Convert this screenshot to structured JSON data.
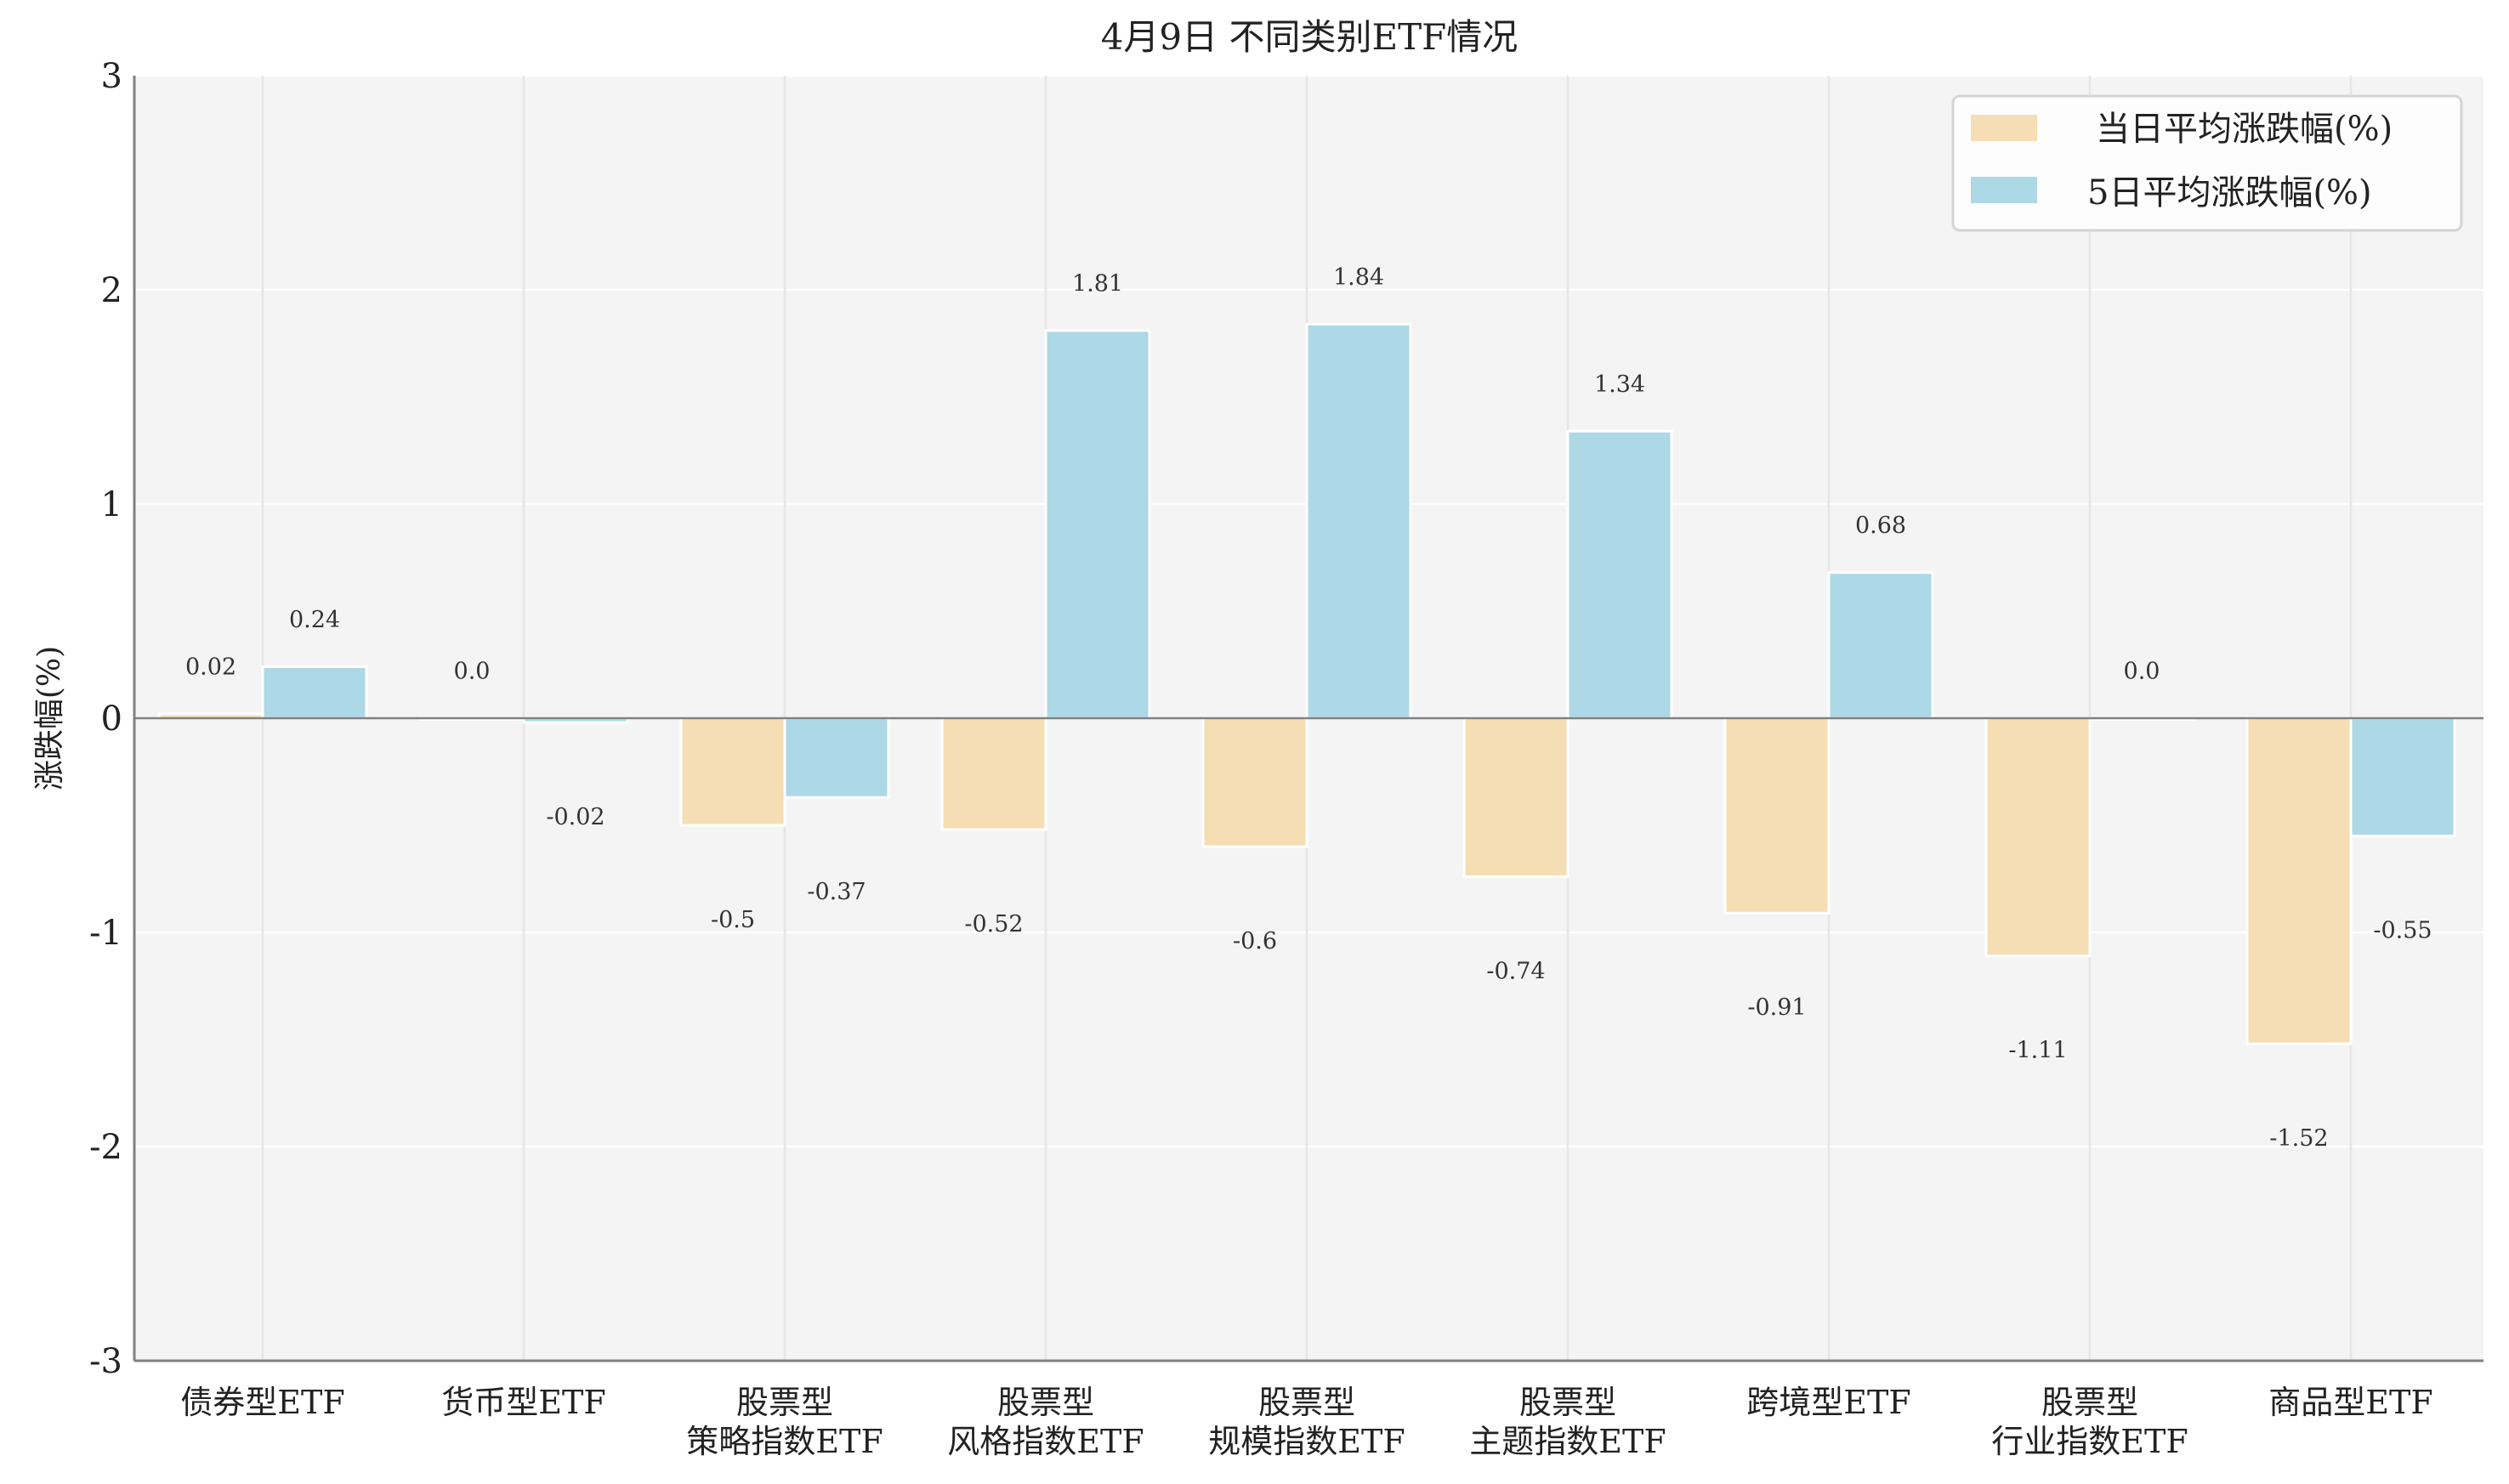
{
  "chart_data": {
    "type": "bar",
    "title": "4月9日 不同类别ETF情况",
    "ylabel": "涨跌幅(%)",
    "xlabel": "",
    "ylim": [
      -3,
      3
    ],
    "yticks": [
      "3",
      "2",
      "1",
      "0",
      "-1",
      "-2",
      "-3"
    ],
    "grid": true,
    "legend_position": "top-right",
    "categories": [
      [
        "债券型ETF"
      ],
      [
        "货币型ETF"
      ],
      [
        "股票型",
        "策略指数ETF"
      ],
      [
        "股票型",
        "风格指数ETF"
      ],
      [
        "股票型",
        "规模指数ETF"
      ],
      [
        "股票型",
        "主题指数ETF"
      ],
      [
        "跨境型ETF"
      ],
      [
        "股票型",
        "行业指数ETF"
      ],
      [
        "商品型ETF"
      ]
    ],
    "series": [
      {
        "name": "当日平均涨跌幅(%)",
        "color": "#f5deb3",
        "values": [
          0.02,
          0.0,
          -0.5,
          -0.52,
          -0.6,
          -0.74,
          -0.91,
          -1.11,
          -1.52
        ],
        "labels": [
          "0.02",
          "0.0",
          "-0.5",
          "-0.52",
          "-0.6",
          "-0.74",
          "-0.91",
          "-1.11",
          "-1.52"
        ]
      },
      {
        "name": "5日平均涨跌幅(%)",
        "color": "#add8e6",
        "values": [
          0.24,
          -0.02,
          -0.37,
          1.81,
          1.84,
          1.34,
          0.68,
          0.0,
          -0.55
        ],
        "labels": [
          "0.24",
          "-0.02",
          "-0.37",
          "1.81",
          "1.84",
          "1.34",
          "0.68",
          "0.0",
          "-0.55"
        ]
      }
    ]
  }
}
